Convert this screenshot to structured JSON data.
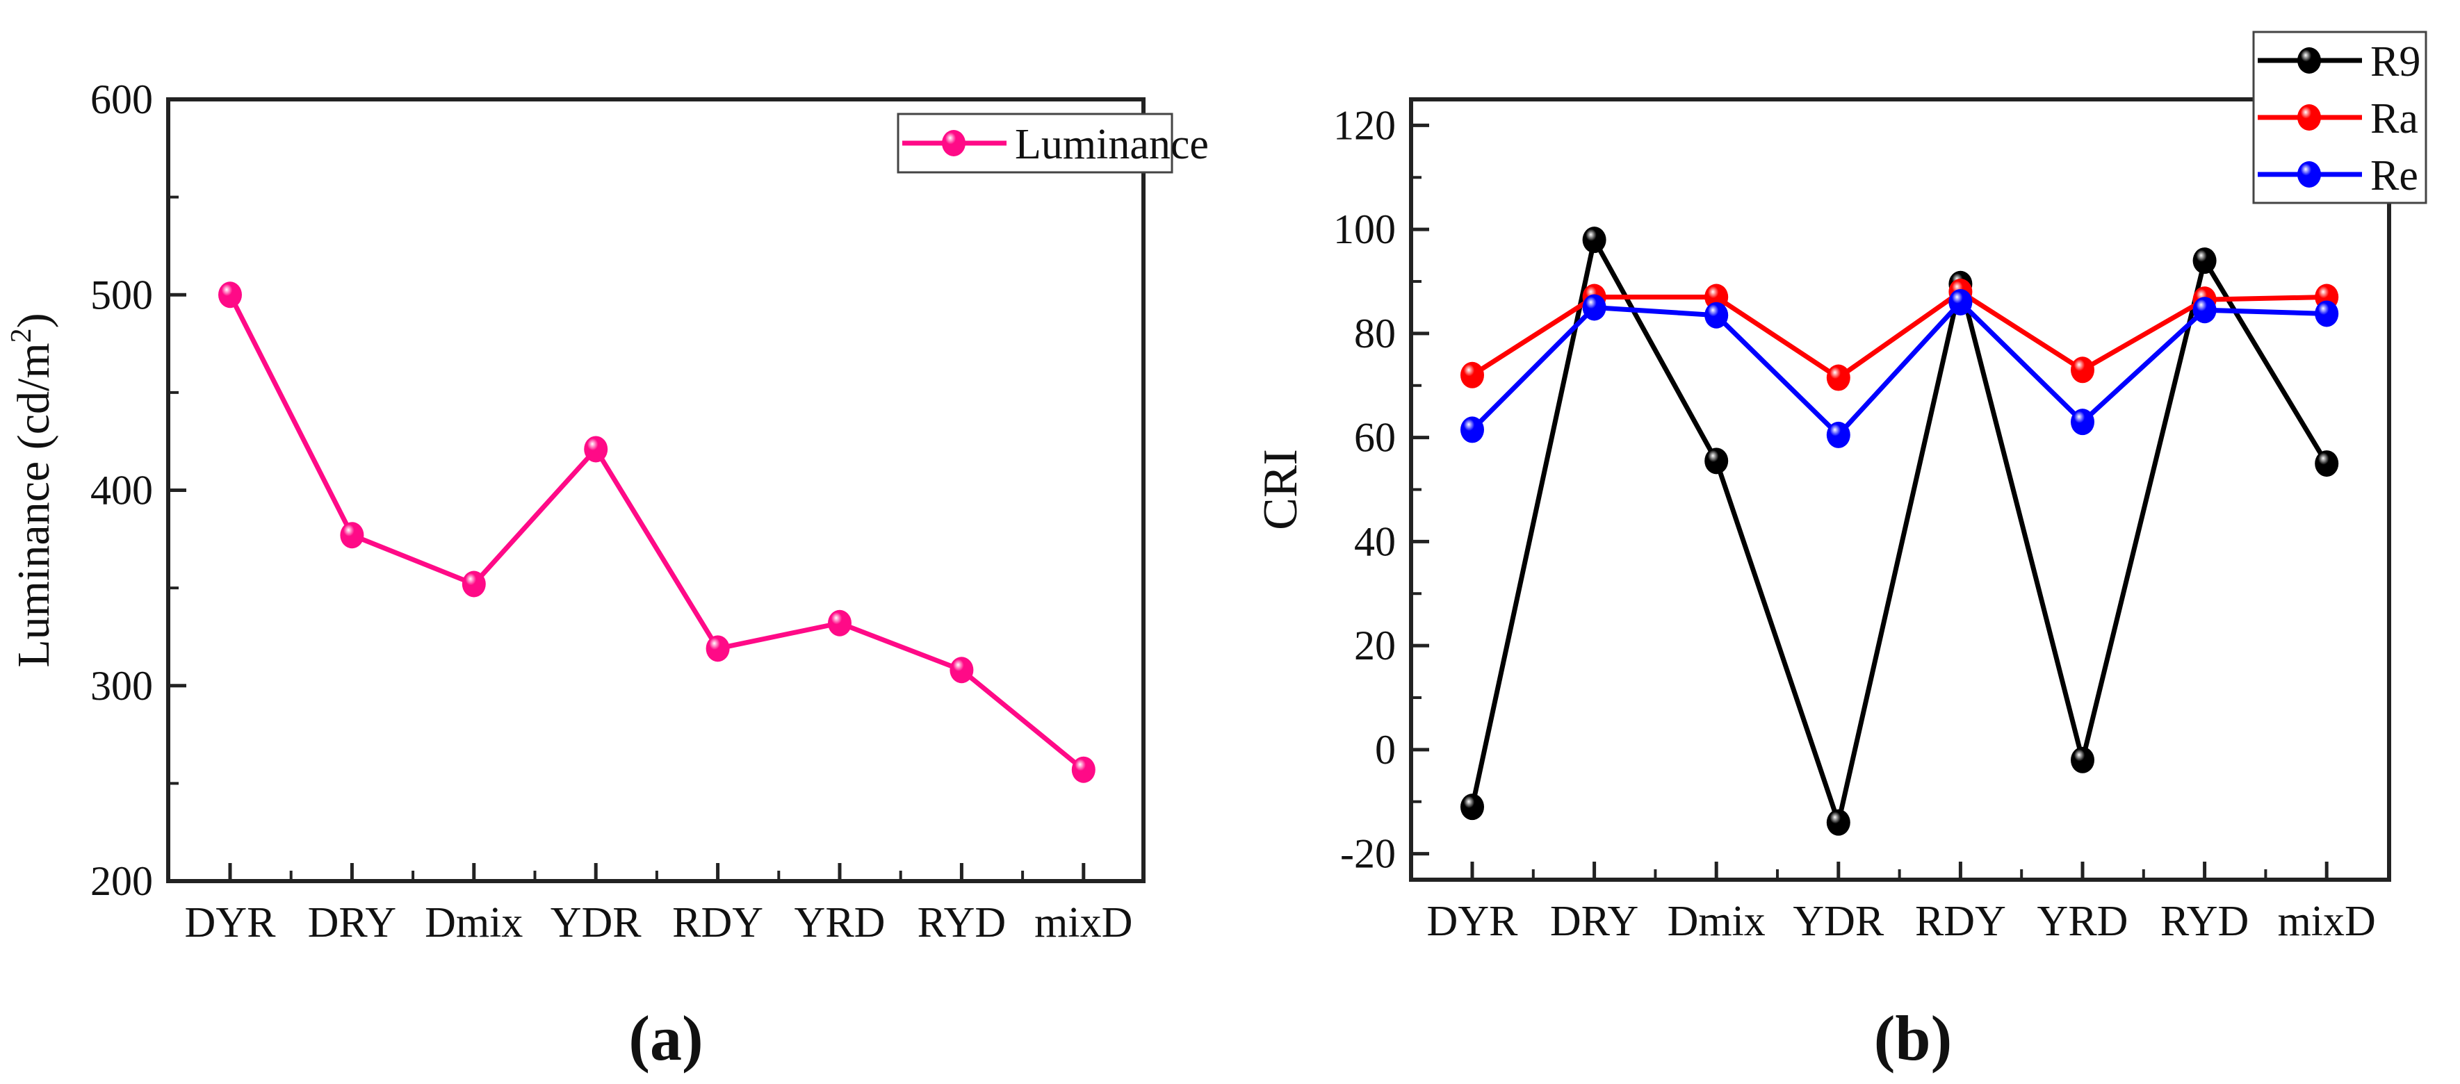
{
  "chart_data": [
    {
      "type": "line",
      "panel_label": "(a)",
      "title": "",
      "xlabel": "",
      "ylabel": "Luminance (cd/m",
      "ylabel_sup": "2",
      "ylabel_end": ")",
      "categories": [
        "DYR",
        "DRY",
        "Dmix",
        "YDR",
        "RDY",
        "YRD",
        "RYD",
        "mixD"
      ],
      "ylim": [
        200,
        600
      ],
      "yticks": [
        200,
        300,
        400,
        500,
        600
      ],
      "yminor": 50,
      "legend_position": "top-right",
      "series": [
        {
          "name": "Luminance",
          "color": "#ff0a87",
          "values": [
            500,
            377,
            352,
            421,
            319,
            332,
            308,
            257
          ]
        }
      ]
    },
    {
      "type": "line",
      "panel_label": "(b)",
      "title": "",
      "xlabel": "",
      "ylabel": "CRI",
      "categories": [
        "DYR",
        "DRY",
        "Dmix",
        "YDR",
        "RDY",
        "YRD",
        "RYD",
        "mixD"
      ],
      "ylim": [
        -25,
        125
      ],
      "yticks": [
        -20,
        0,
        20,
        40,
        60,
        80,
        100,
        120
      ],
      "yminor": 10,
      "legend_position": "top-right-outside",
      "series": [
        {
          "name": "R9",
          "color": "#000000",
          "values": [
            -11,
            98,
            55.5,
            -14,
            89.5,
            -2,
            94,
            55
          ]
        },
        {
          "name": "Ra",
          "color": "#ff0000",
          "values": [
            72,
            87,
            87,
            71.5,
            88,
            73,
            86.5,
            87
          ]
        },
        {
          "name": "Re",
          "color": "#0000ff",
          "values": [
            61.5,
            85,
            83.5,
            60.5,
            86,
            63,
            84.5,
            83.8
          ]
        }
      ]
    }
  ]
}
